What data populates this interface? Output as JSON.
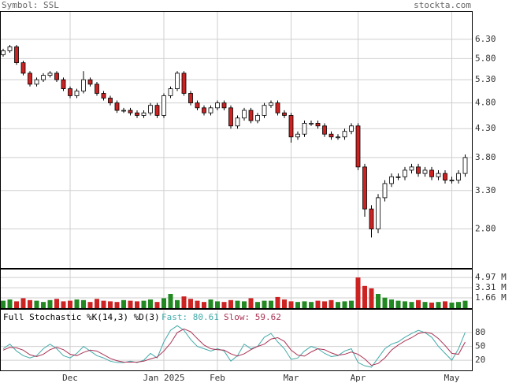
{
  "header": {
    "symbol": "Symbol: SSL",
    "site": "stockta.com"
  },
  "chart_data": [
    {
      "type": "candlestick",
      "log": true,
      "grid": true,
      "ylim": [
        2.37,
        7.11
      ],
      "yticks": [
        {
          "value": 2.8,
          "label": "2.80"
        },
        {
          "value": 3.3,
          "label": "3.30"
        },
        {
          "value": 3.8,
          "label": "3.80"
        },
        {
          "value": 4.3,
          "label": "4.30"
        },
        {
          "value": 4.8,
          "label": "4.80"
        },
        {
          "value": 5.3,
          "label": "5.30"
        },
        {
          "value": 5.8,
          "label": "5.80"
        },
        {
          "value": 6.3,
          "label": "6.30"
        }
      ],
      "up_color": "#ffffff",
      "down_color": "#cc2222",
      "open": [
        5.9,
        6.0,
        6.1,
        5.7,
        5.45,
        5.2,
        5.3,
        5.4,
        5.45,
        5.3,
        5.1,
        4.95,
        5.05,
        5.3,
        5.2,
        5.0,
        4.9,
        4.8,
        4.65,
        4.65,
        4.6,
        4.55,
        4.6,
        4.75,
        4.55,
        4.95,
        5.1,
        5.45,
        5.0,
        4.8,
        4.7,
        4.6,
        4.7,
        4.8,
        4.7,
        4.35,
        4.5,
        4.65,
        4.45,
        4.55,
        4.75,
        4.8,
        4.6,
        4.55,
        4.15,
        4.2,
        4.4,
        4.4,
        4.35,
        4.2,
        4.15,
        4.15,
        4.25,
        4.35,
        3.65,
        3.05,
        2.8,
        3.2,
        3.4,
        3.5,
        3.5,
        3.6,
        3.65,
        3.55,
        3.6,
        3.5,
        3.55,
        3.45,
        3.45,
        3.55
      ],
      "high": [
        6.05,
        6.15,
        6.15,
        5.75,
        5.5,
        5.35,
        5.45,
        5.5,
        5.5,
        5.35,
        5.15,
        5.1,
        5.5,
        5.35,
        5.25,
        5.05,
        4.95,
        4.85,
        4.7,
        4.7,
        4.65,
        4.65,
        4.8,
        4.8,
        5.0,
        5.15,
        5.5,
        5.5,
        5.05,
        4.85,
        4.75,
        4.75,
        4.85,
        4.85,
        4.75,
        4.55,
        4.7,
        4.7,
        4.6,
        4.8,
        4.85,
        4.85,
        4.65,
        4.6,
        4.25,
        4.45,
        4.45,
        4.45,
        4.4,
        4.25,
        4.2,
        4.3,
        4.4,
        4.4,
        3.7,
        3.1,
        3.25,
        3.45,
        3.55,
        3.55,
        3.65,
        3.7,
        3.7,
        3.65,
        3.65,
        3.6,
        3.6,
        3.5,
        3.6,
        3.85
      ],
      "low": [
        5.85,
        5.95,
        5.65,
        5.4,
        5.15,
        5.15,
        5.25,
        5.35,
        5.25,
        5.05,
        4.9,
        4.9,
        5.0,
        5.15,
        4.95,
        4.85,
        4.75,
        4.6,
        4.6,
        4.55,
        4.5,
        4.5,
        4.55,
        4.5,
        4.5,
        4.9,
        5.05,
        4.95,
        4.75,
        4.65,
        4.55,
        4.55,
        4.65,
        4.65,
        4.3,
        4.3,
        4.45,
        4.4,
        4.4,
        4.5,
        4.7,
        4.55,
        4.5,
        4.05,
        4.1,
        4.15,
        4.35,
        4.3,
        4.15,
        4.1,
        4.1,
        4.1,
        4.2,
        3.6,
        2.95,
        2.7,
        2.75,
        3.15,
        3.35,
        3.45,
        3.45,
        3.55,
        3.5,
        3.5,
        3.45,
        3.45,
        3.4,
        3.4,
        3.4,
        3.5
      ],
      "close": [
        6.0,
        6.1,
        5.7,
        5.45,
        5.2,
        5.3,
        5.4,
        5.45,
        5.3,
        5.1,
        4.95,
        5.05,
        5.3,
        5.2,
        5.0,
        4.9,
        4.8,
        4.65,
        4.65,
        4.6,
        4.55,
        4.6,
        4.75,
        4.55,
        4.95,
        5.1,
        5.45,
        5.0,
        4.8,
        4.7,
        4.6,
        4.7,
        4.8,
        4.7,
        4.35,
        4.5,
        4.65,
        4.45,
        4.55,
        4.75,
        4.8,
        4.6,
        4.55,
        4.15,
        4.2,
        4.4,
        4.4,
        4.35,
        4.2,
        4.15,
        4.15,
        4.25,
        4.35,
        3.65,
        3.05,
        2.8,
        3.2,
        3.4,
        3.5,
        3.5,
        3.6,
        3.65,
        3.55,
        3.6,
        3.5,
        3.55,
        3.45,
        3.45,
        3.55,
        3.8
      ]
    },
    {
      "type": "bar",
      "grid": true,
      "ylim": [
        0,
        6.26
      ],
      "yticks": [
        {
          "value": 1.66,
          "label": "1.66 M"
        },
        {
          "value": 3.31,
          "label": "3.31 M"
        },
        {
          "value": 4.97,
          "label": "4.97 M"
        }
      ],
      "up_color": "#228822",
      "down_color": "#cc2222",
      "values": [
        1.2,
        1.4,
        1.1,
        1.6,
        1.3,
        1.2,
        1.0,
        1.3,
        1.5,
        1.1,
        1.2,
        1.4,
        1.3,
        1.0,
        1.5,
        1.2,
        1.1,
        1.0,
        1.3,
        1.2,
        1.1,
        1.2,
        1.4,
        1.0,
        1.6,
        2.3,
        1.3,
        1.9,
        1.5,
        1.2,
        1.0,
        1.4,
        1.1,
        1.0,
        1.3,
        1.2,
        1.1,
        1.6,
        1.0,
        1.2,
        1.2,
        1.8,
        1.4,
        1.1,
        1.0,
        1.1,
        1.0,
        1.2,
        1.1,
        1.3,
        1.0,
        1.1,
        1.2,
        4.97,
        3.6,
        3.2,
        2.3,
        1.7,
        1.4,
        1.2,
        1.1,
        1.0,
        1.3,
        1.0,
        0.9,
        1.0,
        1.1,
        0.9,
        1.0,
        1.2
      ]
    },
    {
      "type": "line",
      "grid": true,
      "title": "Full Stochastic %K(14,3) %D(3)",
      "ylim": [
        -2,
        128
      ],
      "yticks": [
        20,
        50,
        80
      ],
      "categories": [
        null,
        null,
        null,
        null,
        null,
        null,
        null,
        null,
        null,
        null,
        "Dec",
        null,
        null,
        null,
        null,
        null,
        null,
        null,
        null,
        null,
        null,
        null,
        null,
        null,
        "Jan 2025",
        null,
        null,
        null,
        null,
        null,
        null,
        null,
        "Feb",
        null,
        null,
        null,
        null,
        null,
        null,
        null,
        null,
        null,
        null,
        "Mar",
        null,
        null,
        null,
        null,
        null,
        null,
        null,
        null,
        null,
        "Apr",
        null,
        null,
        null,
        null,
        null,
        null,
        null,
        null,
        null,
        null,
        null,
        null,
        null,
        "May",
        null,
        null
      ],
      "series": [
        {
          "name": "Fast: 80.61",
          "color": "#44aaaa",
          "values": [
            45,
            55,
            40,
            30,
            25,
            30,
            45,
            55,
            45,
            30,
            25,
            35,
            50,
            40,
            30,
            25,
            18,
            15,
            15,
            18,
            15,
            20,
            35,
            25,
            60,
            85,
            95,
            85,
            65,
            50,
            45,
            40,
            45,
            40,
            18,
            30,
            55,
            45,
            50,
            70,
            78,
            60,
            45,
            22,
            25,
            40,
            50,
            45,
            35,
            28,
            30,
            40,
            45,
            15,
            8,
            5,
            25,
            45,
            55,
            60,
            70,
            78,
            85,
            80,
            70,
            50,
            35,
            20,
            45,
            80.61
          ]
        },
        {
          "name": "Slow: 59.62",
          "color": "#aa3355",
          "values": [
            42,
            48,
            47,
            42,
            32,
            28,
            33,
            43,
            48,
            43,
            33,
            30,
            37,
            42,
            40,
            32,
            24,
            19,
            16,
            16,
            16,
            18,
            23,
            27,
            40,
            57,
            80,
            88,
            82,
            67,
            53,
            45,
            43,
            42,
            34,
            29,
            34,
            43,
            50,
            55,
            66,
            69,
            61,
            42,
            31,
            29,
            38,
            45,
            43,
            36,
            31,
            33,
            38,
            33,
            23,
            9,
            13,
            25,
            42,
            53,
            62,
            69,
            78,
            81,
            78,
            67,
            52,
            35,
            33,
            59.62
          ]
        }
      ]
    }
  ]
}
